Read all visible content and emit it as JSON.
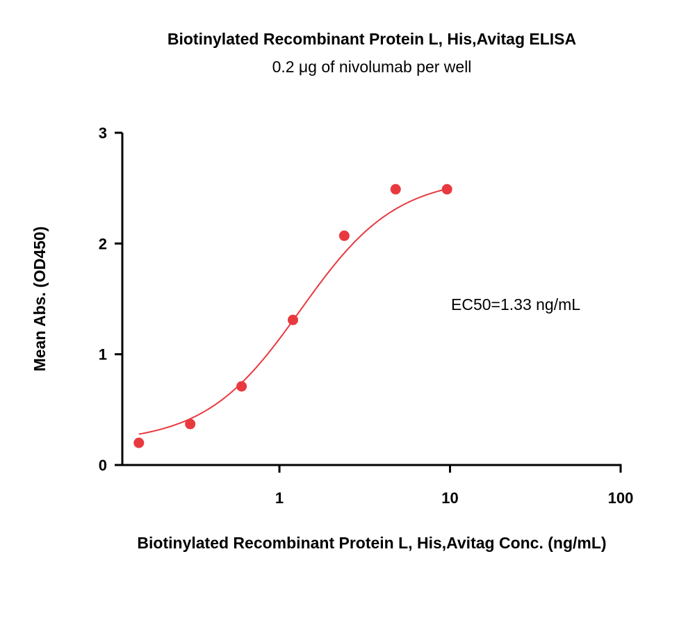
{
  "chart_data": {
    "type": "scatter",
    "title": "Biotinylated Recombinant Protein L, His,Avitag ELISA",
    "subtitle": "0.2 μg of nivolumab per well",
    "xlabel": "Biotinylated Recombinant Protein L, His,Avitag Conc. (ng/mL)",
    "ylabel": "Mean Abs. (OD450)",
    "x_scale": "log",
    "xlim": [
      0.12,
      100
    ],
    "ylim": [
      0,
      3
    ],
    "x_ticks": [
      1,
      10,
      100
    ],
    "x_tick_labels": [
      "1",
      "10",
      "100"
    ],
    "y_ticks": [
      0,
      1,
      2,
      3
    ],
    "y_tick_labels": [
      "0",
      "1",
      "2",
      "3"
    ],
    "point_color": "#e8393f",
    "curve_color": "#e8393f",
    "annotation": "EC50=1.33 ng/mL",
    "series": [
      {
        "x": [
          0.15,
          0.3,
          0.6,
          1.2,
          2.4,
          4.8,
          9.6
        ],
        "y": [
          0.2,
          0.37,
          0.71,
          1.31,
          2.07,
          2.49,
          2.49
        ],
        "fit": {
          "model": "4PL",
          "bottom": 0.2,
          "top": 2.6,
          "ec50": 1.33,
          "hill": 1.55,
          "x_range": [
            0.15,
            9.6
          ]
        }
      }
    ]
  }
}
